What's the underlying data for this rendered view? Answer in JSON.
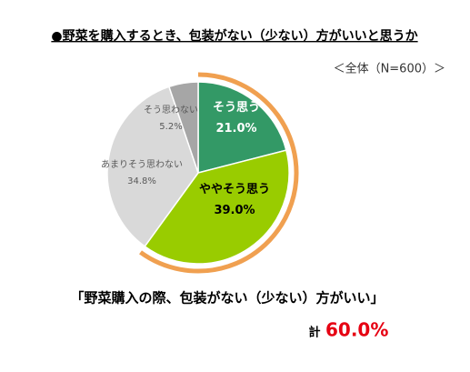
{
  "chart_data": {
    "type": "pie",
    "title": "●野菜を購入するとき、包装がない（少ない）方がいいと思うか",
    "subtitle": "＜全体（N=600）＞",
    "categories": [
      "そう思う",
      "ややそう思う",
      "あまりそう思わない",
      "そう思わない"
    ],
    "values": [
      21.0,
      39.0,
      34.8,
      5.2
    ],
    "value_labels": [
      "21.0%",
      "39.0%",
      "34.8%",
      "5.2%"
    ],
    "colors": [
      "#339966",
      "#99cc00",
      "#d9d9d9",
      "#a6a6a6"
    ],
    "annotation": "「野菜購入の際、包装がない（少ない）方がいい」",
    "total": {
      "label": "計",
      "value": 60.0,
      "value_label": "60.0%",
      "color": "#f0a050"
    }
  }
}
